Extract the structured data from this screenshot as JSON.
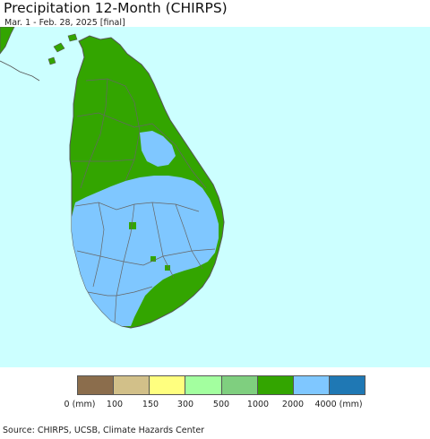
{
  "title": "Precipitation 12-Month (CHIRPS)",
  "subtitle": "Mar. 1 - Feb. 28, 2025 [final]",
  "source": "Source: CHIRPS, UCSB, Climate Hazards Center",
  "map": {
    "region": "Sri Lanka",
    "ocean_color": "#ccffff",
    "land_outline_color": "#555555",
    "district_border_color": "#666666",
    "dominant_classes": [
      "1000-2000",
      "2000-4000"
    ]
  },
  "legend": {
    "colors": [
      "#8b6d4c",
      "#d2c089",
      "#ffff7f",
      "#a3ff9f",
      "#7fcf7f",
      "#33a500",
      "#7fc7ff",
      "#1f78b4"
    ],
    "labels": [
      "0 (mm)",
      "100",
      "150",
      "300",
      "500",
      "1000",
      "2000",
      "4000 (mm)"
    ]
  }
}
